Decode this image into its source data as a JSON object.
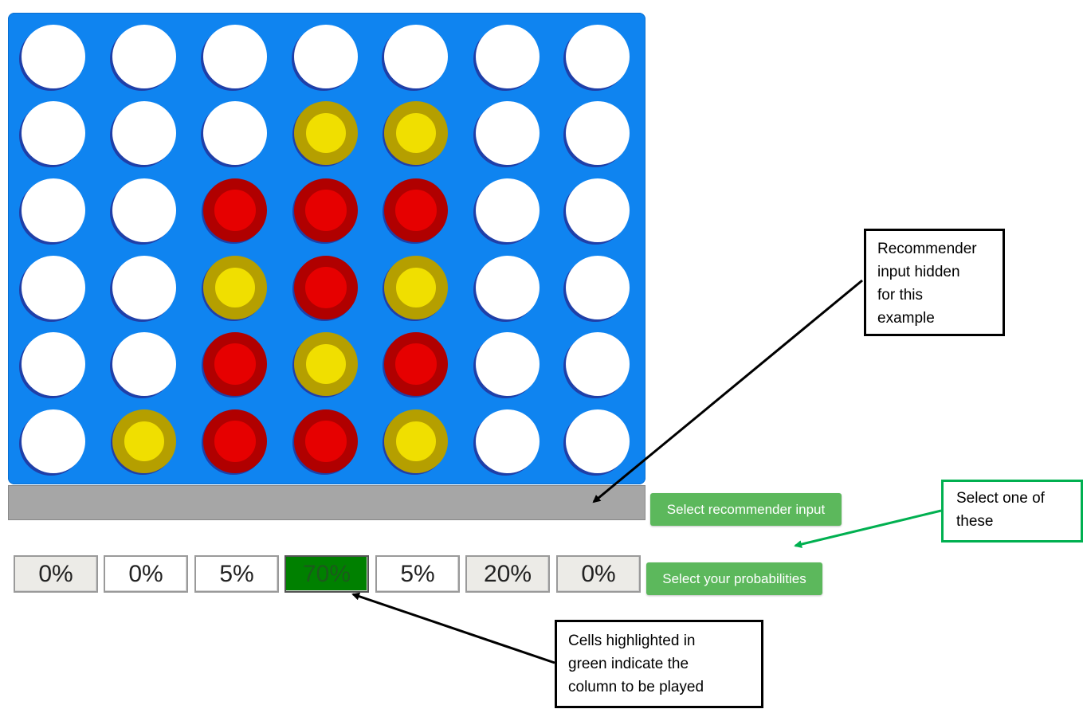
{
  "board": {
    "rows": [
      [
        "empty",
        "empty",
        "empty",
        "empty",
        "empty",
        "empty",
        "empty"
      ],
      [
        "empty",
        "empty",
        "empty",
        "yellow",
        "yellow",
        "empty",
        "empty"
      ],
      [
        "empty",
        "empty",
        "red",
        "red",
        "red",
        "empty",
        "empty"
      ],
      [
        "empty",
        "empty",
        "yellow",
        "red",
        "yellow",
        "empty",
        "empty"
      ],
      [
        "empty",
        "empty",
        "red",
        "yellow",
        "red",
        "empty",
        "empty"
      ],
      [
        "empty",
        "yellow",
        "red",
        "red",
        "yellow",
        "empty",
        "empty"
      ]
    ],
    "colors": {
      "board": "#0f84f0",
      "yellow": "#f0df00",
      "red": "#e60000",
      "empty": "#ffffff"
    }
  },
  "recommender": {
    "button_label": "Select recommender input"
  },
  "probabilities": {
    "cells": [
      {
        "label": "0%",
        "style": "grey"
      },
      {
        "label": "0%",
        "style": "white"
      },
      {
        "label": "5%",
        "style": "white"
      },
      {
        "label": "70%",
        "style": "green"
      },
      {
        "label": "5%",
        "style": "white"
      },
      {
        "label": "20%",
        "style": "grey"
      },
      {
        "label": "0%",
        "style": "grey"
      }
    ],
    "button_label": "Select your probabilities"
  },
  "annotations": {
    "recommender_hidden": {
      "lines": [
        "Recommender",
        "input hidden",
        "for this",
        "example"
      ]
    },
    "select_one": {
      "lines": [
        "Select one of",
        "these"
      ]
    },
    "cells_highlighted": {
      "lines": [
        "Cells highlighted in",
        "green indicate the",
        "column to be played"
      ]
    }
  }
}
